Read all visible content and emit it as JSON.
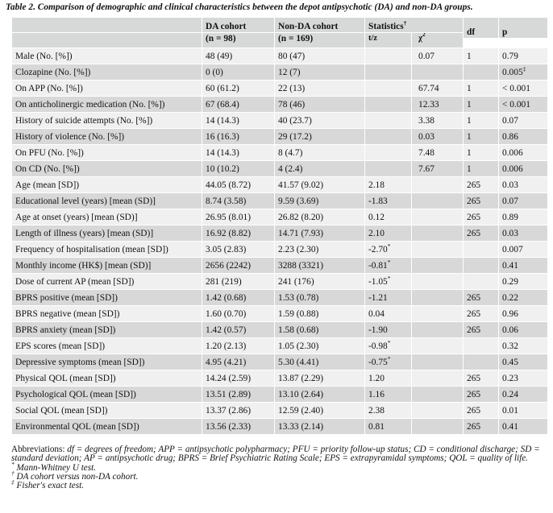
{
  "caption": "Table 2. Comparison of demographic and clinical characteristics between the depot antipsychotic (DA) and non-DA groups.",
  "header": {
    "da_label": "DA cohort",
    "da_n": "(n = 98)",
    "nonda_label": "Non-DA cohort",
    "nonda_n": "(n = 169)",
    "statistics": "Statistics",
    "statistics_mark": "†",
    "tz": "t/z",
    "chi": "χ",
    "chi_sup": "2",
    "df": "df",
    "p": "p"
  },
  "rows": [
    {
      "label": "Male (No. [%])",
      "da": "48 (49)",
      "nonda": "80 (47)",
      "tz": "",
      "tz_mark": "",
      "chi": "0.07",
      "df": "1",
      "p": "0.79",
      "p_mark": ""
    },
    {
      "label": "Clozapine (No. [%])",
      "da": "0 (0)",
      "nonda": "12 (7)",
      "tz": "",
      "tz_mark": "",
      "chi": "",
      "df": "",
      "p": "0.005",
      "p_mark": "‡"
    },
    {
      "label": "On APP (No. [%])",
      "da": "60 (61.2)",
      "nonda": "22 (13)",
      "tz": "",
      "tz_mark": "",
      "chi": "67.74",
      "df": "1",
      "p": "< 0.001",
      "p_mark": ""
    },
    {
      "label": "On anticholinergic medication (No. [%])",
      "da": "67 (68.4)",
      "nonda": "78 (46)",
      "tz": "",
      "tz_mark": "",
      "chi": "12.33",
      "df": "1",
      "p": "< 0.001",
      "p_mark": ""
    },
    {
      "label": "History of suicide attempts (No. [%])",
      "da": "14 (14.3)",
      "nonda": "40 (23.7)",
      "tz": "",
      "tz_mark": "",
      "chi": "3.38",
      "df": "1",
      "p": "0.07",
      "p_mark": ""
    },
    {
      "label": "History of violence (No. [%])",
      "da": "16 (16.3)",
      "nonda": "29 (17.2)",
      "tz": "",
      "tz_mark": "",
      "chi": "0.03",
      "df": "1",
      "p": "0.86",
      "p_mark": ""
    },
    {
      "label": "On PFU (No. [%])",
      "da": "14 (14.3)",
      "nonda": "8 (4.7)",
      "tz": "",
      "tz_mark": "",
      "chi": "7.48",
      "df": "1",
      "p": "0.006",
      "p_mark": ""
    },
    {
      "label": "On CD (No. [%])",
      "da": "10 (10.2)",
      "nonda": "4 (2.4)",
      "tz": "",
      "tz_mark": "",
      "chi": "7.67",
      "df": "1",
      "p": "0.006",
      "p_mark": ""
    },
    {
      "label": "Age (mean [SD])",
      "da": "44.05 (8.72)",
      "nonda": "41.57 (9.02)",
      "tz": "2.18",
      "tz_mark": "",
      "chi": "",
      "df": "265",
      "p": "0.03",
      "p_mark": ""
    },
    {
      "label": "Educational level (years) [mean (SD)]",
      "da": "8.74 (3.58)",
      "nonda": "9.59 (3.69)",
      "tz": "-1.83",
      "tz_mark": "",
      "chi": "",
      "df": "265",
      "p": "0.07",
      "p_mark": ""
    },
    {
      "label": "Age at onset (years) [mean (SD)]",
      "da": "26.95 (8.01)",
      "nonda": "26.82 (8.20)",
      "tz": "0.12",
      "tz_mark": "",
      "chi": "",
      "df": "265",
      "p": "0.89",
      "p_mark": ""
    },
    {
      "label": "Length of illness (years) [mean (SD)]",
      "da": "16.92 (8.82)",
      "nonda": "14.71 (7.93)",
      "tz": "2.10",
      "tz_mark": "",
      "chi": "",
      "df": "265",
      "p": "0.03",
      "p_mark": ""
    },
    {
      "label": "Frequency of hospitalisation (mean [SD])",
      "da": "3.05 (2.83)",
      "nonda": "2.23 (2.30)",
      "tz": "-2.70",
      "tz_mark": "*",
      "chi": "",
      "df": "",
      "p": "0.007",
      "p_mark": ""
    },
    {
      "label": "Monthly income (HK$) [mean (SD)]",
      "da": "2656 (2242)",
      "nonda": "3288 (3321)",
      "tz": "-0.81",
      "tz_mark": "*",
      "chi": "",
      "df": "",
      "p": "0.41",
      "p_mark": ""
    },
    {
      "label": "Dose of current AP (mean [SD])",
      "da": "281 (219)",
      "nonda": "241 (176)",
      "tz": "-1.05",
      "tz_mark": "*",
      "chi": "",
      "df": "",
      "p": "0.29",
      "p_mark": ""
    },
    {
      "label": "BPRS positive (mean [SD])",
      "da": "1.42 (0.68)",
      "nonda": "1.53 (0.78)",
      "tz": "-1.21",
      "tz_mark": "",
      "chi": "",
      "df": "265",
      "p": "0.22",
      "p_mark": ""
    },
    {
      "label": "BPRS negative (mean [SD])",
      "da": "1.60 (0.70)",
      "nonda": "1.59 (0.88)",
      "tz": "0.04",
      "tz_mark": "",
      "chi": "",
      "df": "265",
      "p": "0.96",
      "p_mark": ""
    },
    {
      "label": "BPRS anxiety (mean [SD])",
      "da": "1.42 (0.57)",
      "nonda": "1.58 (0.68)",
      "tz": "-1.90",
      "tz_mark": "",
      "chi": "",
      "df": "265",
      "p": "0.06",
      "p_mark": ""
    },
    {
      "label": "EPS scores (mean [SD])",
      "da": "1.20 (2.13)",
      "nonda": "1.05 (2.30)",
      "tz": "-0.98",
      "tz_mark": "*",
      "chi": "",
      "df": "",
      "p": "0.32",
      "p_mark": ""
    },
    {
      "label": "Depressive symptoms (mean [SD])",
      "da": "4.95 (4.21)",
      "nonda": "5.30 (4.41)",
      "tz": "-0.75",
      "tz_mark": "*",
      "chi": "",
      "df": "",
      "p": "0.45",
      "p_mark": ""
    },
    {
      "label": "Physical QOL  (mean [SD])",
      "da": "14.24 (2.59)",
      "nonda": "13.87 (2.29)",
      "tz": "1.20",
      "tz_mark": "",
      "chi": "",
      "df": "265",
      "p": "0.23",
      "p_mark": ""
    },
    {
      "label": "Psychological QOL (mean [SD])",
      "da": "13.51 (2.89)",
      "nonda": "13.10 (2.64)",
      "tz": "1.16",
      "tz_mark": "",
      "chi": "",
      "df": "265",
      "p": "0.24",
      "p_mark": ""
    },
    {
      "label": "Social QOL (mean [SD])",
      "da": "13.37 (2.86)",
      "nonda": "12.59 (2.40)",
      "tz": "2.38",
      "tz_mark": "",
      "chi": "",
      "df": "265",
      "p": "0.01",
      "p_mark": ""
    },
    {
      "label": "Environmental QOL (mean [SD])",
      "da": "13.56 (2.33)",
      "nonda": "13.33 (2.14)",
      "tz": "0.81",
      "tz_mark": "",
      "chi": "",
      "df": "265",
      "p": "0.41",
      "p_mark": ""
    }
  ],
  "notes": {
    "abbr_label": "Abbreviations: ",
    "abbr_text": "df = degrees of freedom; APP = antipsychotic polypharmacy; PFU = priority follow-up status; CD = conditional discharge; SD = standard deviation; AP = antipsychotic drug; BPRS = Brief Psychiatric Rating Scale; EPS = extrapyramidal symptoms; QOL = quality of life.",
    "fn1_mark": "*",
    "fn1": " Mann-Whitney U test.",
    "fn2_mark": "†",
    "fn2": " DA cohort versus non-DA cohort.",
    "fn3_mark": "‡",
    "fn3": " Fisher's exact test."
  }
}
